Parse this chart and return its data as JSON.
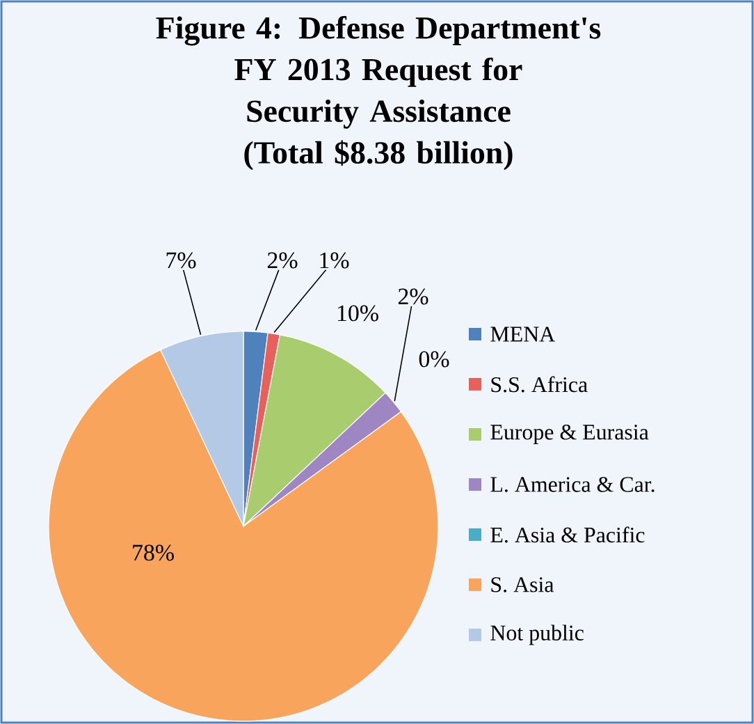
{
  "chart_data": {
    "type": "pie",
    "title": "Figure 4: Defense Department's FY 2013 Request for Security Assistance",
    "subtitle": "(Total $8.38 billion)",
    "categories": [
      "MENA",
      "S.S. Africa",
      "Europe & Eurasia",
      "L. America & Car.",
      "E. Asia & Pacific",
      "S. Asia",
      "Not public"
    ],
    "values": [
      2,
      1,
      10,
      2,
      0,
      78,
      7
    ],
    "value_labels": [
      "2%",
      "1%",
      "10%",
      "2%",
      "0%",
      "78%",
      "7%"
    ],
    "colors": [
      "#4f81bd",
      "#e8605c",
      "#a9cd6e",
      "#9d86c2",
      "#4bacc6",
      "#f9a45c",
      "#b3c9e6"
    ],
    "legend": "right"
  }
}
